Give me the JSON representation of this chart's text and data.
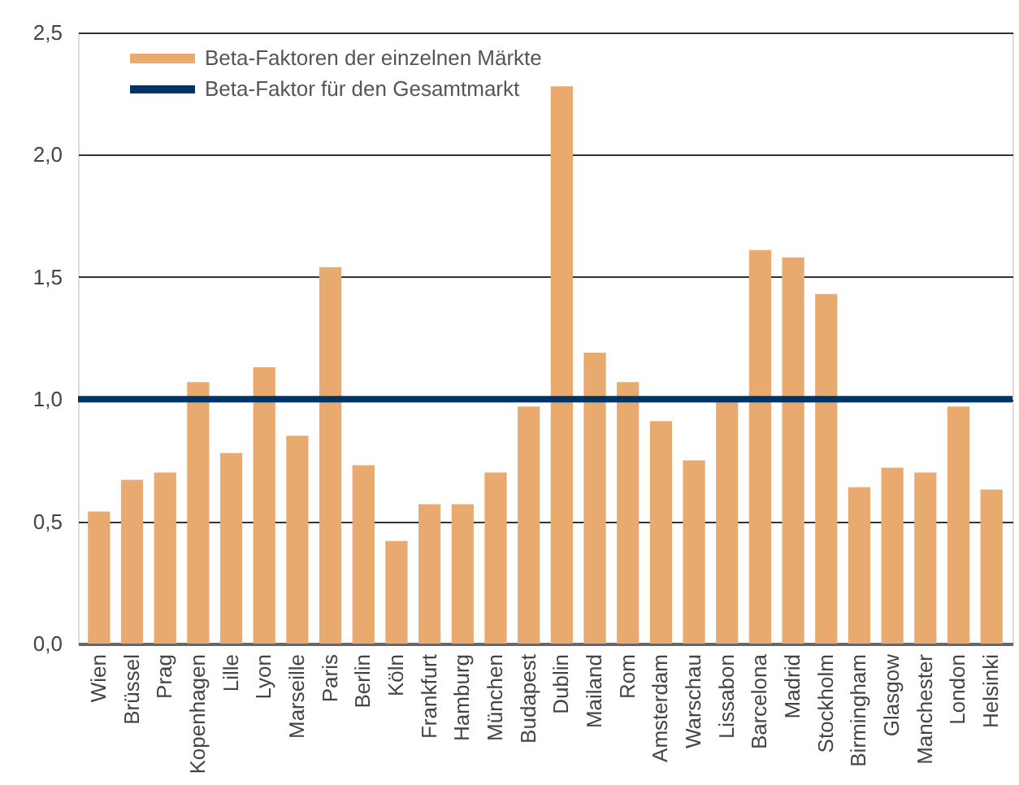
{
  "chart_data": {
    "type": "bar",
    "categories": [
      "Wien",
      "Brüssel",
      "Prag",
      "Kopenhagen",
      "Lille",
      "Lyon",
      "Marseille",
      "Paris",
      "Berlin",
      "Köln",
      "Frankfurt",
      "Hamburg",
      "München",
      "Budapest",
      "Dublin",
      "Mailand",
      "Rom",
      "Amsterdam",
      "Warschau",
      "Lissabon",
      "Barcelona",
      "Madrid",
      "Stockholm",
      "Birmingham",
      "Glasgow",
      "Manchester",
      "London",
      "Helsinki"
    ],
    "series": [
      {
        "name": "Beta-Faktoren der einzelnen Märkte",
        "color": "#e8aa6e",
        "values": [
          0.54,
          0.67,
          0.7,
          1.07,
          0.78,
          1.13,
          0.85,
          1.54,
          0.73,
          0.42,
          0.57,
          0.57,
          0.7,
          0.97,
          2.28,
          1.19,
          1.07,
          0.91,
          0.75,
          0.99,
          1.61,
          1.58,
          1.43,
          0.64,
          0.72,
          0.7,
          0.97,
          0.63
        ]
      }
    ],
    "ref_lines": [
      {
        "axis": "y",
        "value": 1.0,
        "label": "Beta-Faktor für den Gesamtmarkt",
        "color": "#003366"
      }
    ],
    "ylim": [
      0,
      2.5
    ],
    "yticks": [
      {
        "value": 0,
        "label": "0,0"
      },
      {
        "value": 0.5,
        "label": "0,5"
      },
      {
        "value": 1.0,
        "label": "1,0"
      },
      {
        "value": 1.5,
        "label": "1,5"
      },
      {
        "value": 2.0,
        "label": "2,0"
      },
      {
        "value": 2.5,
        "label": "2,5"
      }
    ],
    "grid": "y",
    "legend": "top left"
  }
}
